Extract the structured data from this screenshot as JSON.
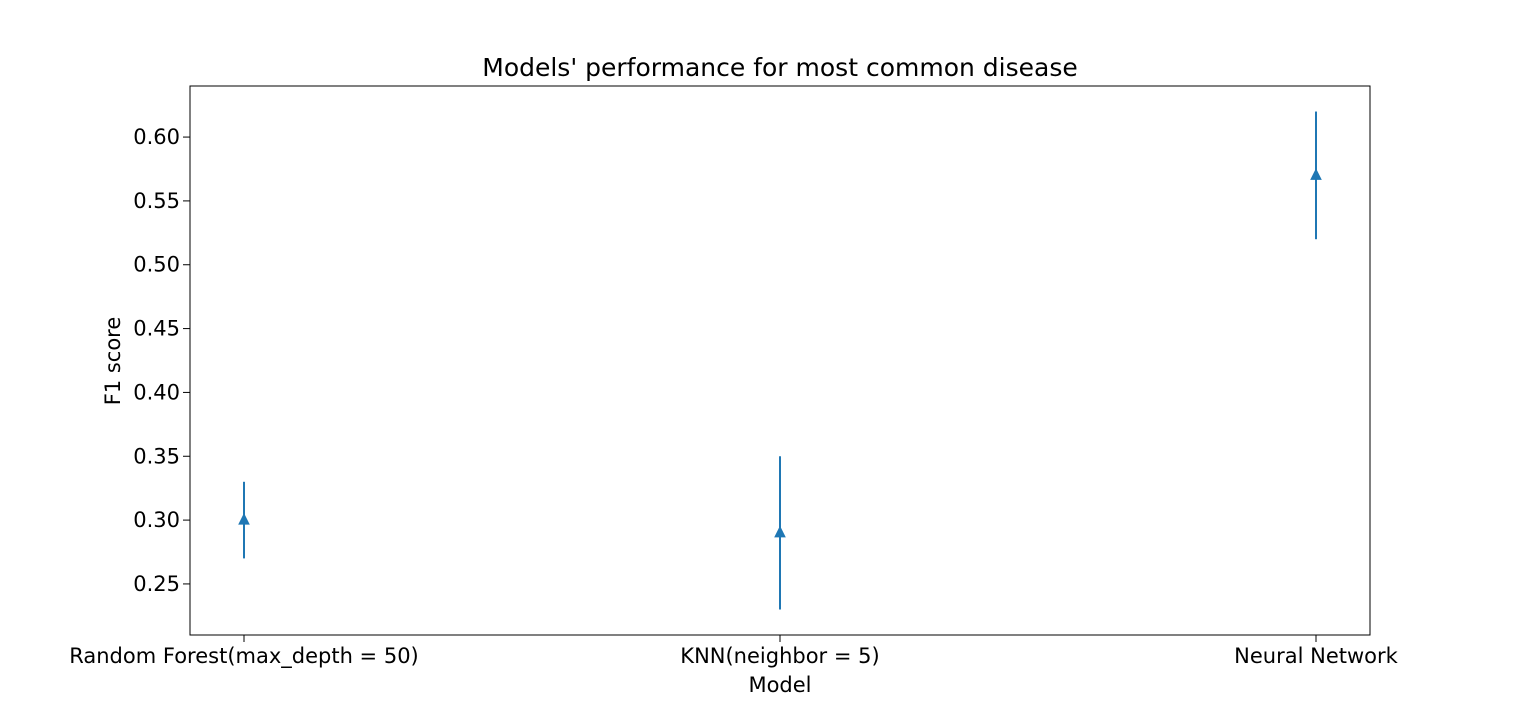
{
  "chart_data": {
    "type": "errorbar",
    "title": "Models' performance for most common disease",
    "xlabel": "Model",
    "ylabel": "F1 score",
    "categories": [
      "Random Forest(max_depth = 50)",
      "KNN(neighbor = 5)",
      "Neural Network"
    ],
    "series": [
      {
        "values": [
          0.3,
          0.29,
          0.57
        ],
        "errors": [
          0.03,
          0.06,
          0.05
        ],
        "marker": "triangle-up",
        "color": "#1f77b4"
      }
    ],
    "ylim": [
      0.21,
      0.64
    ],
    "yticks": [
      "0.25",
      "0.30",
      "0.35",
      "0.40",
      "0.45",
      "0.50",
      "0.55",
      "0.60"
    ],
    "grid": false,
    "legend": false
  }
}
